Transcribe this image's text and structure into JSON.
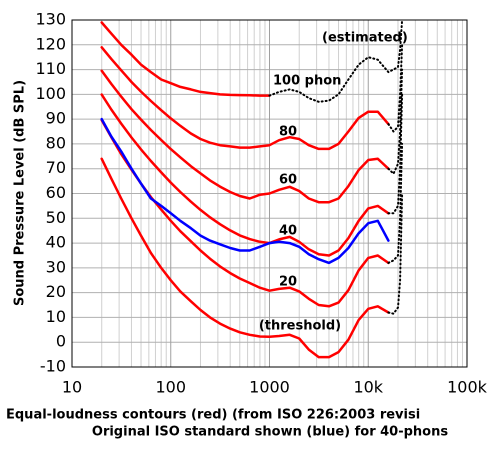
{
  "chart_data": {
    "type": "line",
    "xlabel": [
      "Equal-loudness contours (red) (from ISO 226:2003 revisi",
      "Original ISO standard shown (blue) for 40-phons"
    ],
    "ylabel": "Sound Pressure Level (dB SPL)",
    "xscale": "log",
    "grid": true,
    "xlim": [
      10,
      100000
    ],
    "ylim": [
      -10,
      130
    ],
    "xticks": [
      10,
      100,
      1000,
      {
        "value": 10000,
        "label": "10k"
      },
      {
        "value": 100000,
        "label": "100k"
      }
    ],
    "yticks": [
      -10,
      0,
      10,
      20,
      30,
      40,
      50,
      60,
      70,
      80,
      90,
      100,
      110,
      120,
      130
    ],
    "x": [
      20,
      25,
      31.5,
      40,
      50,
      63,
      80,
      100,
      125,
      160,
      200,
      250,
      315,
      400,
      500,
      630,
      800,
      1000,
      1250,
      1600,
      2000,
      2500,
      3150,
      4000,
      5000,
      6300,
      8000,
      10000,
      12500,
      16000
    ],
    "series": [
      {
        "color": "#ff0000",
        "values": [
          74,
          66,
          58,
          50,
          43,
          36,
          30,
          25,
          20.5,
          16.5,
          13,
          10,
          7.5,
          5.5,
          4,
          3,
          2.3,
          2.2,
          2.5,
          3,
          1.5,
          -3,
          -6,
          -6,
          -4,
          1,
          9,
          13.5,
          14.5,
          12
        ]
      },
      {
        "color": "#ff0000",
        "values": [
          89.6,
          82.7,
          75.9,
          69.6,
          64,
          58.6,
          53.5,
          49,
          44.8,
          40.7,
          37,
          33.7,
          30.6,
          27.9,
          25.7,
          23.9,
          22,
          20.8,
          21.5,
          22,
          20.5,
          17.5,
          15,
          14.5,
          16,
          21,
          29,
          34,
          35,
          32
        ]
      },
      {
        "color": "#ff0000",
        "values": [
          99.9,
          93.9,
          88.2,
          82.6,
          77.8,
          73.1,
          68.5,
          64.4,
          60.6,
          56.7,
          53.4,
          50.4,
          47.6,
          45.1,
          43.1,
          41.6,
          40.5,
          40,
          41.5,
          42.5,
          40.5,
          37.5,
          35.5,
          35,
          37,
          42,
          49,
          54,
          55,
          52
        ]
      },
      {
        "color": "#ff0000",
        "values": [
          109.5,
          104.2,
          99.1,
          94,
          89.8,
          85.6,
          81.6,
          77.9,
          74.6,
          71,
          68.1,
          65.3,
          62.8,
          60.6,
          59,
          58,
          59.5,
          60,
          61.5,
          62.7,
          61,
          58,
          56.5,
          56.5,
          58,
          63,
          69.5,
          73.5,
          74,
          70
        ]
      },
      {
        "color": "#ff0000",
        "values": [
          119,
          114.3,
          109.7,
          105,
          101.1,
          97.3,
          93.6,
          90.3,
          87.3,
          84.2,
          82,
          80.5,
          79.5,
          79,
          78.5,
          78.5,
          79,
          79.5,
          81.5,
          82.7,
          82,
          79.5,
          78,
          78,
          80,
          85,
          90.5,
          93,
          93,
          88
        ]
      },
      {
        "color": "#ff0000",
        "values": [
          129,
          124.5,
          120,
          116,
          112,
          109,
          106,
          104.5,
          103,
          102,
          101,
          100.5,
          100,
          99.8,
          99.7,
          99.6,
          99.5,
          99.5,
          null,
          null,
          null,
          null,
          null,
          null,
          null,
          null,
          null,
          null,
          null,
          null
        ]
      },
      {
        "color": "#0000ff",
        "values": [
          90,
          83,
          77,
          70,
          64,
          58,
          55,
          52,
          49,
          46,
          43,
          41,
          39.5,
          38,
          37,
          37,
          38.5,
          40,
          40.5,
          40,
          38.5,
          35.5,
          33.5,
          32,
          34,
          38,
          44,
          48,
          49,
          41
        ]
      },
      {
        "color": "#000000",
        "dash": "dotted",
        "x": [
          16000,
          18000,
          20000,
          21000,
          22000
        ],
        "values": [
          12,
          11.5,
          14,
          25,
          60
        ]
      },
      {
        "color": "#000000",
        "dash": "dotted",
        "x": [
          16000,
          18000,
          20000,
          21000,
          22000
        ],
        "values": [
          32,
          33,
          35,
          50,
          80
        ]
      },
      {
        "color": "#000000",
        "dash": "dotted",
        "x": [
          16000,
          18000,
          20000,
          21000,
          22000
        ],
        "values": [
          52,
          52,
          55,
          70,
          100
        ]
      },
      {
        "color": "#000000",
        "dash": "dotted",
        "x": [
          16000,
          18000,
          20000,
          21000,
          22000
        ],
        "values": [
          70,
          68,
          72,
          85,
          110
        ]
      },
      {
        "color": "#000000",
        "dash": "dotted",
        "x": [
          16000,
          18000,
          20000,
          21000,
          22000
        ],
        "values": [
          88,
          85,
          87,
          100,
          120
        ]
      },
      {
        "color": "#000000",
        "dash": "dotted",
        "x": [
          1000,
          1250,
          1600,
          2000,
          2500,
          3150,
          4000,
          5000,
          6300,
          8000,
          10000,
          12500,
          16000,
          20000,
          21000,
          22000
        ],
        "values": [
          99.5,
          101,
          102,
          101,
          98.5,
          97,
          97.5,
          100,
          106,
          112,
          115,
          114,
          109,
          111,
          118,
          130
        ]
      }
    ],
    "annotations": [
      "(estimated)",
      "100 phon",
      "80",
      "60",
      "40",
      "20",
      "(threshold)"
    ]
  }
}
